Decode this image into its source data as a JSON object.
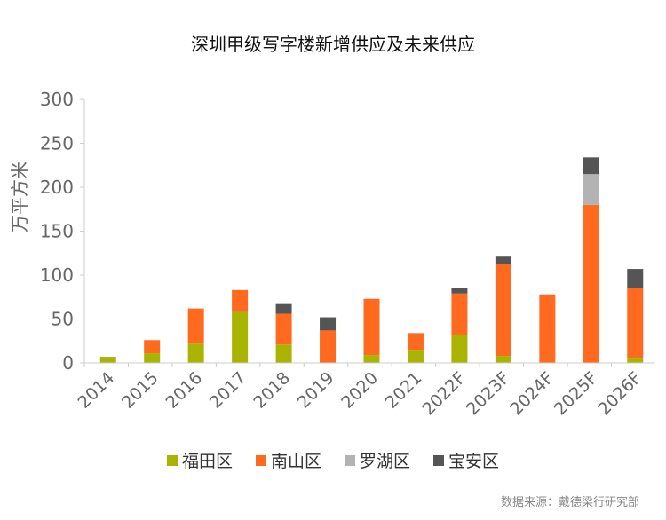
{
  "chart_data": {
    "type": "bar",
    "stacked": true,
    "title": "深圳甲级写字楼新增供应及未来供应",
    "xlabel": "",
    "ylabel": "万平方米",
    "ylim": [
      0,
      300
    ],
    "yticks": [
      0,
      50,
      100,
      150,
      200,
      250,
      300
    ],
    "grid": false,
    "legend_position": "bottom",
    "categories": [
      "2014",
      "2015",
      "2016",
      "2017",
      "2018",
      "2019",
      "2020",
      "2021",
      "2022F",
      "2023F",
      "2024F",
      "2025F",
      "2026F"
    ],
    "series": [
      {
        "name": "福田区",
        "color": "#a8b400",
        "values": [
          7,
          11,
          22,
          58,
          21,
          0,
          9,
          15,
          32,
          8,
          0,
          0,
          5
        ]
      },
      {
        "name": "南山区",
        "color": "#ff6a1f",
        "values": [
          0,
          15,
          40,
          25,
          35,
          37,
          64,
          19,
          47,
          105,
          78,
          180,
          80
        ]
      },
      {
        "name": "罗湖区",
        "color": "#b3b3b3",
        "values": [
          0,
          0,
          0,
          0,
          0,
          0,
          0,
          0,
          0,
          0,
          0,
          35,
          0
        ]
      },
      {
        "name": "宝安区",
        "color": "#555555",
        "values": [
          0,
          0,
          0,
          0,
          11,
          15,
          0,
          0,
          6,
          8,
          0,
          19,
          22
        ]
      }
    ]
  },
  "source_note": "数据来源：戴德梁行研究部"
}
